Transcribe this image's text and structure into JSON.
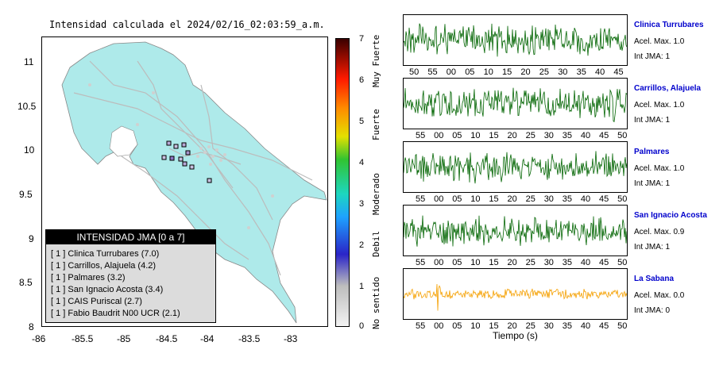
{
  "map": {
    "title": "Intensidad calculada el 2024/02/16_02:03:59_a.m.",
    "y_ticks": [
      "11",
      "10.5",
      "10",
      "9.5",
      "9",
      "8.5",
      "8"
    ],
    "x_ticks": [
      "-86",
      "-85.5",
      "-85",
      "-84.5",
      "-84",
      "-83.5",
      "-83"
    ]
  },
  "colorbar": {
    "ticks": [
      "7",
      "6",
      "5",
      "4",
      "3",
      "2",
      "1",
      "0"
    ],
    "words": [
      "Muy Fuerte",
      "Fuerte",
      "Moderado",
      "Debil",
      "No sentido"
    ]
  },
  "legend": {
    "heading": "INTENSIDAD JMA [0 a 7]",
    "rows": [
      "[ 1 ]  Clinica Turrubares (7.0)",
      "[ 1 ]  Carrillos, Alajuela (4.2)",
      "[ 1 ]  Palmares (3.2)",
      "[ 1 ]  San Ignacio Acosta (3.4)",
      "[ 1 ]  CAIS Puriscal (2.7)",
      "[ 1 ]  Fabio Baudrit N00 UCR (2.1)"
    ]
  },
  "traces": [
    {
      "name": "Clinica Turrubares",
      "accel": "Acel. Max. 1.0",
      "jma": "Int JMA: 1",
      "color": "#006400",
      "ticks": [
        "50",
        "55",
        "00",
        "05",
        "10",
        "15",
        "20",
        "25",
        "30",
        "35",
        "40",
        "45"
      ]
    },
    {
      "name": "Carrillos, Alajuela",
      "accel": "Acel. Max. 1.0",
      "jma": "Int JMA: 1",
      "color": "#006400",
      "ticks": [
        "55",
        "00",
        "05",
        "10",
        "15",
        "20",
        "25",
        "30",
        "35",
        "40",
        "45",
        "50"
      ]
    },
    {
      "name": "Palmares",
      "accel": "Acel. Max. 1.0",
      "jma": "Int JMA: 1",
      "color": "#006400",
      "ticks": [
        "55",
        "00",
        "05",
        "10",
        "15",
        "20",
        "25",
        "30",
        "35",
        "40",
        "45",
        "50"
      ]
    },
    {
      "name": "San Ignacio Acosta",
      "accel": "Acel. Max. 0.9",
      "jma": "Int JMA: 1",
      "color": "#006400",
      "ticks": [
        "55",
        "00",
        "05",
        "10",
        "15",
        "20",
        "25",
        "30",
        "35",
        "40",
        "45",
        "50"
      ]
    },
    {
      "name": "La Sabana",
      "accel": "Acel. Max. 0.0",
      "jma": "Int JMA: 0",
      "color": "#f5a000",
      "ticks": [
        "55",
        "00",
        "05",
        "10",
        "15",
        "20",
        "25",
        "30",
        "35",
        "40",
        "45",
        "50"
      ]
    }
  ],
  "xlabel": "Tiempo (s)"
}
